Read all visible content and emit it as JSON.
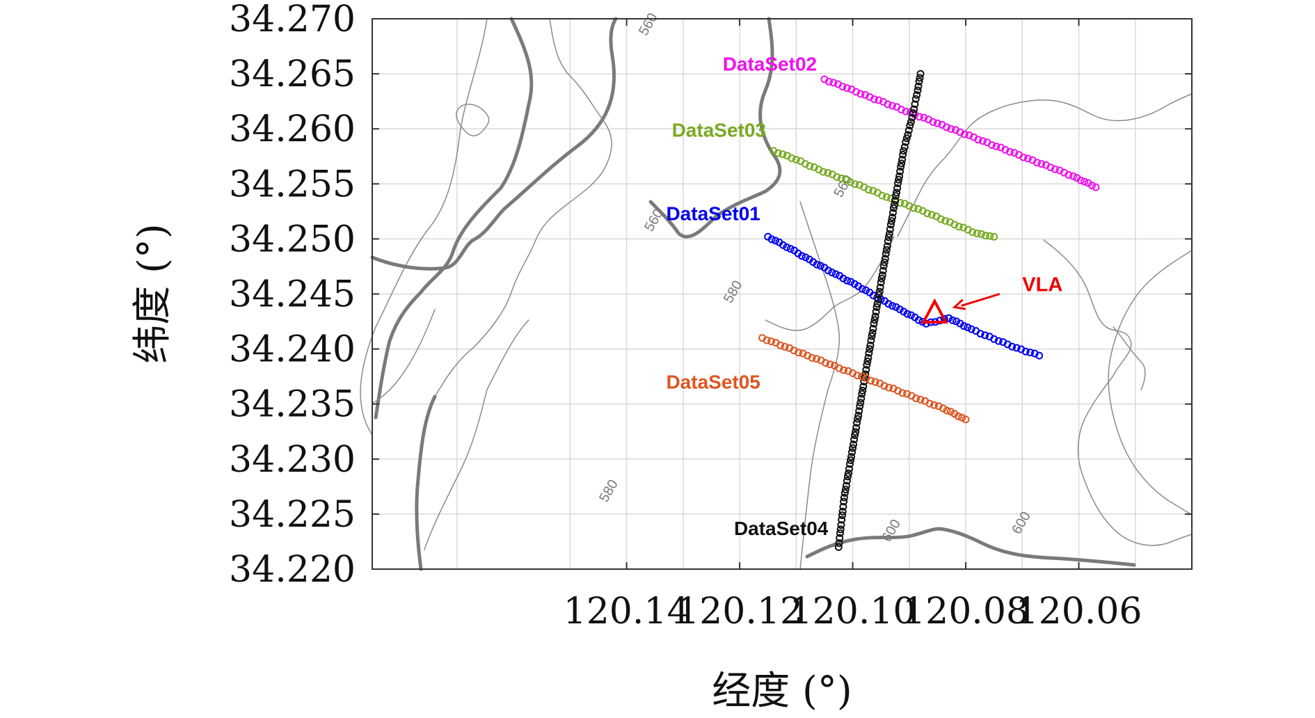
{
  "chart_data": {
    "type": "scatter",
    "title": "",
    "xlabel": "经度 (°)",
    "ylabel": "纬度 (°)",
    "xlim": [
      120.04,
      120.185
    ],
    "ylim": [
      34.22,
      34.27
    ],
    "x_reversed": true,
    "grid": true,
    "xticks": [
      "120.14",
      "120.12",
      "120.10",
      "120.08",
      "120.06"
    ],
    "xtick_values": [
      120.14,
      120.12,
      120.1,
      120.08,
      120.06
    ],
    "yticks": [
      "34.220",
      "34.225",
      "34.230",
      "34.235",
      "34.240",
      "34.245",
      "34.250",
      "34.255",
      "34.260",
      "34.265",
      "34.270"
    ],
    "ytick_values": [
      34.22,
      34.225,
      34.23,
      34.235,
      34.24,
      34.245,
      34.25,
      34.255,
      34.26,
      34.265,
      34.27
    ],
    "series": [
      {
        "name": "DataSet01",
        "color": "#0000ee",
        "marker": "circle",
        "x": [
          120.115,
          120.111,
          120.107,
          120.103,
          120.099,
          120.095,
          120.091,
          120.087,
          120.083,
          120.079,
          120.075,
          120.071,
          120.067
        ],
        "y": [
          34.2502,
          34.2491,
          34.2479,
          34.2468,
          34.2457,
          34.2445,
          34.2434,
          34.2423,
          34.2428,
          34.2418,
          34.2409,
          34.2401,
          34.2394
        ]
      },
      {
        "name": "DataSet02",
        "color": "#ee11ee",
        "marker": "circle",
        "x": [
          120.105,
          120.101,
          120.097,
          120.093,
          120.089,
          120.085,
          120.081,
          120.077,
          120.073,
          120.069,
          120.065,
          120.061,
          120.057
        ],
        "y": [
          34.2645,
          34.2637,
          34.2629,
          34.2621,
          34.2613,
          34.2605,
          34.2597,
          34.2589,
          34.2581,
          34.2573,
          34.2565,
          34.2557,
          34.2547
        ]
      },
      {
        "name": "DataSet03",
        "color": "#77aa22",
        "marker": "circle",
        "x": [
          120.114,
          120.11,
          120.106,
          120.102,
          120.098,
          120.094,
          120.09,
          120.086,
          120.082,
          120.078,
          120.075
        ],
        "y": [
          34.258,
          34.2572,
          34.2563,
          34.2555,
          34.2547,
          34.2538,
          34.253,
          34.2522,
          34.2513,
          34.2505,
          34.2502
        ]
      },
      {
        "name": "DataSet04",
        "color": "#111111",
        "marker": "circle",
        "x": [
          120.1025,
          120.1015,
          120.1,
          120.0985,
          120.097,
          120.0955,
          120.094,
          120.0925,
          120.091,
          120.0895,
          120.0885,
          120.088
        ],
        "y": [
          34.222,
          34.2265,
          34.231,
          34.2355,
          34.24,
          34.2445,
          34.249,
          34.2535,
          34.258,
          34.261,
          34.2635,
          34.265
        ]
      },
      {
        "name": "DataSet05",
        "color": "#dd5522",
        "marker": "circle",
        "x": [
          120.116,
          120.112,
          120.108,
          120.104,
          120.1,
          120.096,
          120.092,
          120.088,
          120.084,
          120.08
        ],
        "y": [
          34.241,
          34.2402,
          34.2394,
          34.2386,
          34.2378,
          34.237,
          34.2362,
          34.2354,
          34.2346,
          34.2336
        ]
      }
    ],
    "series_labels": [
      {
        "text": "DataSet02",
        "color": "#ee11ee",
        "x": 120.123,
        "y": 34.2653
      },
      {
        "text": "DataSet03",
        "color": "#77aa22",
        "x": 120.132,
        "y": 34.2593
      },
      {
        "text": "DataSet01",
        "color": "#0000ee",
        "x": 120.133,
        "y": 34.2517
      },
      {
        "text": "DataSet05",
        "color": "#dd5522",
        "x": 120.133,
        "y": 34.2364
      },
      {
        "text": "DataSet04",
        "color": "#111111",
        "x": 120.121,
        "y": 34.2231
      }
    ],
    "annotation": {
      "text": "VLA",
      "color": "#ee0000",
      "marker": "triangle",
      "x": 120.0855,
      "y": 34.2432,
      "label_x": 120.07,
      "label_y": 34.245,
      "arrow_from": [
        120.074,
        34.245
      ],
      "arrow_to": [
        120.082,
        34.2438
      ]
    },
    "contour_labels": [
      {
        "text": "560",
        "x": 120.1355,
        "y": 34.2693
      },
      {
        "text": "560",
        "x": 120.1345,
        "y": 34.2515
      },
      {
        "text": "560",
        "x": 120.101,
        "y": 34.2546
      },
      {
        "text": "580",
        "x": 120.1205,
        "y": 34.245
      },
      {
        "text": "580",
        "x": 120.1425,
        "y": 34.2269
      },
      {
        "text": "600",
        "x": 120.0925,
        "y": 34.2233
      },
      {
        "text": "600",
        "x": 120.0695,
        "y": 34.224
      }
    ],
    "colors": {
      "grid": "#d9d9d9",
      "axis": "#333333",
      "contour_thin": "#8a8a8a",
      "contour_thick": "#7a7a7a"
    }
  }
}
